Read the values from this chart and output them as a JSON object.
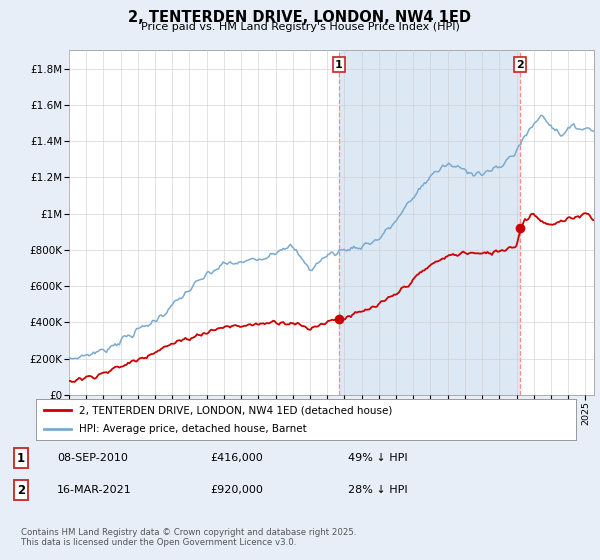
{
  "title": "2, TENTERDEN DRIVE, LONDON, NW4 1ED",
  "subtitle": "Price paid vs. HM Land Registry's House Price Index (HPI)",
  "background_color": "#e8eef8",
  "plot_bg_color": "#ffffff",
  "shade_color": "#dde8f5",
  "grid_color": "#cccccc",
  "ylim": [
    0,
    1900000
  ],
  "yticks": [
    0,
    200000,
    400000,
    600000,
    800000,
    1000000,
    1200000,
    1400000,
    1600000,
    1800000
  ],
  "ytick_labels": [
    "£0",
    "£200K",
    "£400K",
    "£600K",
    "£800K",
    "£1M",
    "£1.2M",
    "£1.4M",
    "£1.6M",
    "£1.8M"
  ],
  "xlim_start": 1995.0,
  "xlim_end": 2025.5,
  "hpi_color": "#7aaad0",
  "price_color": "#cc0000",
  "vline_color": "#ff8888",
  "marker1_x": 2010.68,
  "marker1_y": 416000,
  "marker2_x": 2021.2,
  "marker2_y": 920000,
  "legend_label1": "2, TENTERDEN DRIVE, LONDON, NW4 1ED (detached house)",
  "legend_label2": "HPI: Average price, detached house, Barnet",
  "annotation1_date": "08-SEP-2010",
  "annotation1_price": "£416,000",
  "annotation1_hpi": "49% ↓ HPI",
  "annotation2_date": "16-MAR-2021",
  "annotation2_price": "£920,000",
  "annotation2_hpi": "28% ↓ HPI",
  "footer": "Contains HM Land Registry data © Crown copyright and database right 2025.\nThis data is licensed under the Open Government Licence v3.0."
}
